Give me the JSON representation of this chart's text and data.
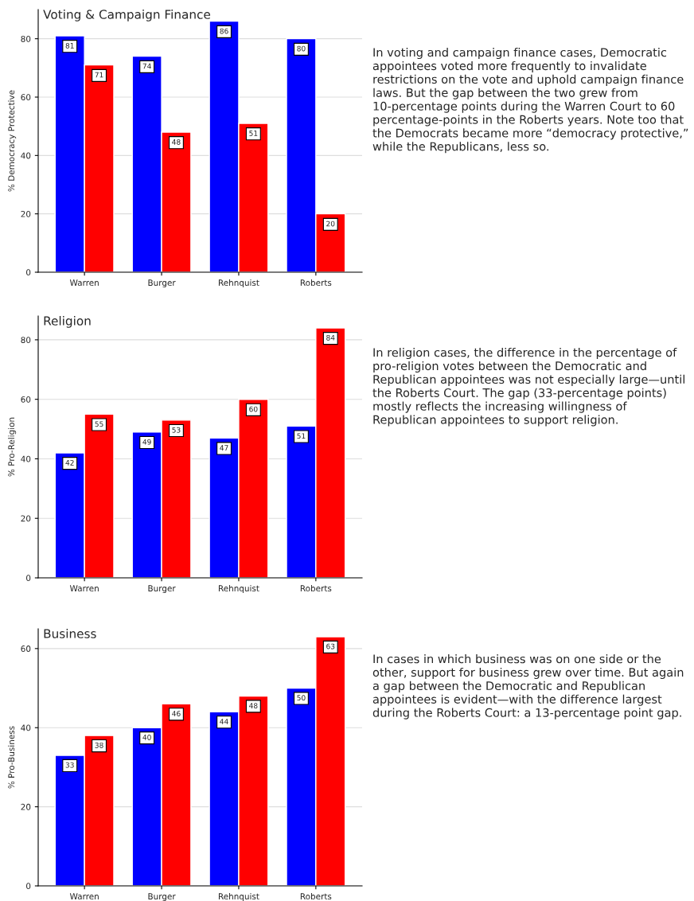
{
  "chart_data": [
    {
      "type": "bar",
      "title": "Voting & Campaign Finance",
      "ylabel": "% Democracy Protective",
      "categories": [
        "Warren",
        "Burger",
        "Rehnquist",
        "Roberts"
      ],
      "series": [
        {
          "color": "#0000ff",
          "values": [
            81,
            74,
            86,
            80
          ]
        },
        {
          "color": "#ff0000",
          "values": [
            71,
            48,
            51,
            20
          ]
        }
      ],
      "ylim": [
        0,
        90
      ],
      "yticks": [
        0,
        20,
        40,
        60,
        80
      ],
      "grid": "y",
      "data_labels": true,
      "annotations": [
        "In voting and campaign finance cases, Democratic appointees voted more frequently to invalidate restrictions on the vote and uphold campaign finance laws. But the gap between the two grew from 10-percentage points during the Warren Court to 60 percentage-points in the Roberts years. Note too that the Democrats became more “democracy protective,” while the Republicans, less so."
      ]
    },
    {
      "type": "bar",
      "title": "Religion",
      "ylabel": "% Pro-Religion",
      "categories": [
        "Warren",
        "Burger",
        "Rehnquist",
        "Roberts"
      ],
      "series": [
        {
          "color": "#0000ff",
          "values": [
            42,
            49,
            47,
            51
          ]
        },
        {
          "color": "#ff0000",
          "values": [
            55,
            53,
            60,
            84
          ]
        }
      ],
      "ylim": [
        0,
        88
      ],
      "yticks": [
        0,
        20,
        40,
        60,
        80
      ],
      "grid": "y",
      "data_labels": true,
      "annotations": [
        "In religion cases, the difference in the percentage of pro-religion votes between the Democratic and Republican appointees was not especially large—until the Roberts Court. The gap (33-percentage points) mostly reflects the increasing willingness of Republican appointees to support religion."
      ]
    },
    {
      "type": "bar",
      "title": "Business",
      "ylabel": "% Pro-Business",
      "categories": [
        "Warren",
        "Burger",
        "Rehnquist",
        "Roberts"
      ],
      "series": [
        {
          "color": "#0000ff",
          "values": [
            33,
            40,
            44,
            50
          ]
        },
        {
          "color": "#ff0000",
          "values": [
            38,
            46,
            48,
            63
          ]
        }
      ],
      "ylim": [
        0,
        65
      ],
      "yticks": [
        0,
        20,
        40,
        60
      ],
      "grid": "y",
      "data_labels": true,
      "annotations": [
        "In cases in which business was on one side or the other, support for business grew over time. But again a gap between the Democratic and Republican appointees is evident—with the difference largest during the Roberts Court: a 13-percentage point gap."
      ]
    }
  ]
}
